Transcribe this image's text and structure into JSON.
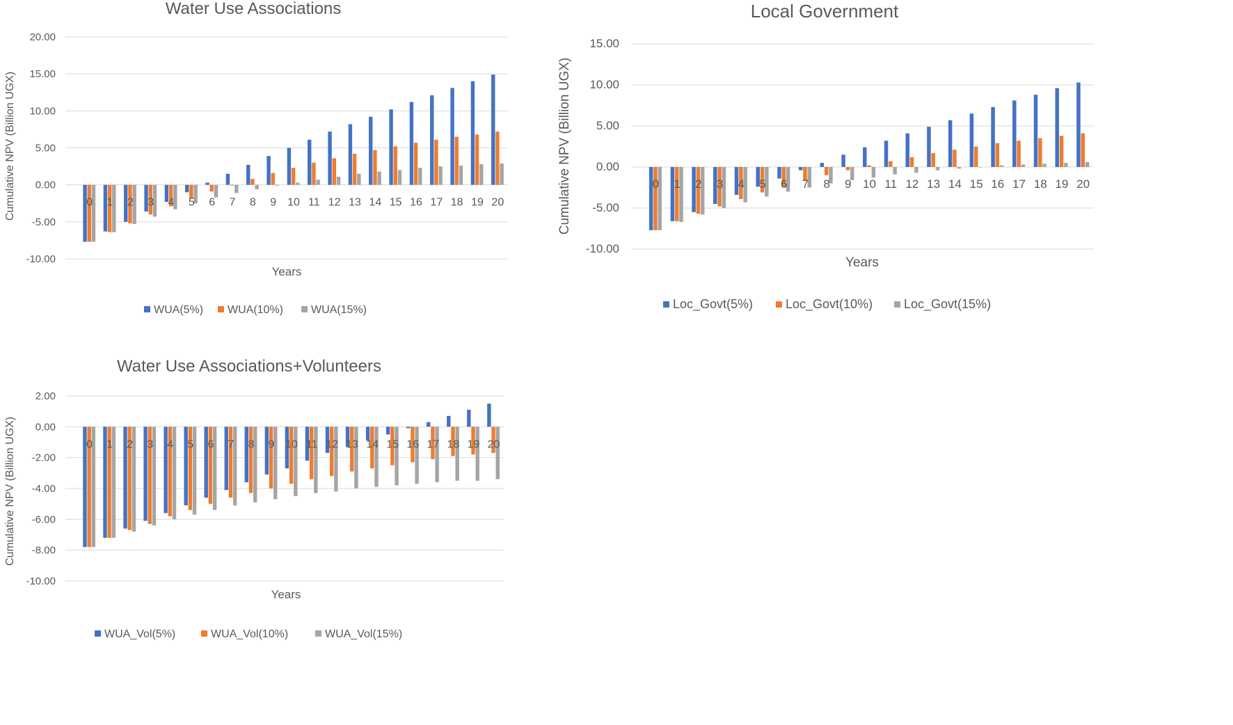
{
  "chart_data": [
    {
      "id": "wua",
      "type": "bar",
      "title": "Water Use Associations",
      "xlabel": "Years",
      "ylabel": "Cumulative NPV (Billion UGX)",
      "ylim": [
        -10,
        20
      ],
      "yticks": [
        -10,
        -5,
        0,
        5,
        10,
        15,
        20
      ],
      "ytick_labels": [
        "-10.00",
        "-5.00",
        "0.00",
        "5.00",
        "10.00",
        "15.00",
        "20.00"
      ],
      "grid": true,
      "legend": "bottom",
      "categories": [
        "0",
        "1",
        "2",
        "3",
        "4",
        "5",
        "6",
        "7",
        "8",
        "9",
        "10",
        "11",
        "12",
        "13",
        "14",
        "15",
        "16",
        "17",
        "18",
        "19",
        "20"
      ],
      "series": [
        {
          "name": "WUA(5%)",
          "color": "#4472C4",
          "values": [
            -7.7,
            -6.3,
            -5.0,
            -3.6,
            -2.3,
            -1.0,
            0.3,
            1.5,
            2.7,
            3.9,
            5.0,
            6.1,
            7.2,
            8.2,
            9.2,
            10.2,
            11.2,
            12.1,
            13.1,
            14.0,
            14.9
          ]
        },
        {
          "name": "WUA(10%)",
          "color": "#ED7D31",
          "values": [
            -7.7,
            -6.4,
            -5.2,
            -4.0,
            -2.9,
            -1.8,
            -0.9,
            -0.1,
            0.8,
            1.6,
            2.3,
            3.0,
            3.6,
            4.2,
            4.7,
            5.2,
            5.7,
            6.1,
            6.5,
            6.8,
            7.2
          ]
        },
        {
          "name": "WUA(15%)",
          "color": "#A5A5A5",
          "values": [
            -7.7,
            -6.4,
            -5.3,
            -4.3,
            -3.3,
            -2.5,
            -1.7,
            -1.1,
            -0.6,
            -0.1,
            0.3,
            0.7,
            1.1,
            1.5,
            1.8,
            2.0,
            2.3,
            2.5,
            2.6,
            2.8,
            2.9
          ]
        }
      ]
    },
    {
      "id": "gov",
      "type": "bar",
      "title": "Local Government",
      "xlabel": "Years",
      "ylabel": "Cumulative NPV (Billion UGX)",
      "ylim": [
        -10,
        15
      ],
      "yticks": [
        -10,
        -5,
        0,
        5,
        10,
        15
      ],
      "ytick_labels": [
        "-10.00",
        "-5.00",
        "0.00",
        "5.00",
        "10.00",
        "15.00"
      ],
      "grid": true,
      "legend": "bottom",
      "categories": [
        "0",
        "1",
        "2",
        "3",
        "4",
        "5",
        "6",
        "7",
        "8",
        "9",
        "10",
        "11",
        "12",
        "13",
        "14",
        "15",
        "16",
        "17",
        "18",
        "19",
        "20"
      ],
      "series": [
        {
          "name": "Loc_Govt(5%)",
          "color": "#4472C4",
          "values": [
            -7.7,
            -6.6,
            -5.5,
            -4.5,
            -3.4,
            -2.4,
            -1.4,
            -0.4,
            0.5,
            1.5,
            2.4,
            3.2,
            4.1,
            4.9,
            5.7,
            6.5,
            7.3,
            8.1,
            8.8,
            9.6,
            10.3
          ]
        },
        {
          "name": "Loc_Govt(10%)",
          "color": "#ED7D31",
          "values": [
            -7.7,
            -6.6,
            -5.7,
            -4.8,
            -3.9,
            -3.1,
            -2.4,
            -1.7,
            -1.0,
            -0.4,
            0.2,
            0.7,
            1.2,
            1.7,
            2.1,
            2.5,
            2.9,
            3.2,
            3.5,
            3.8,
            4.1
          ]
        },
        {
          "name": "Loc_Govt(15%)",
          "color": "#A5A5A5",
          "values": [
            -7.7,
            -6.7,
            -5.8,
            -5.0,
            -4.3,
            -3.6,
            -3.0,
            -2.5,
            -2.0,
            -1.6,
            -1.3,
            -0.9,
            -0.7,
            -0.4,
            -0.2,
            0.0,
            0.2,
            0.3,
            0.4,
            0.5,
            0.6
          ]
        }
      ]
    },
    {
      "id": "vol",
      "type": "bar",
      "title": "Water Use Associations+Volunteers",
      "xlabel": "Years",
      "ylabel": "Cumulative NPV (Billion UGX)",
      "ylim": [
        -10,
        2
      ],
      "yticks": [
        -10,
        -8,
        -6,
        -4,
        -2,
        0,
        2
      ],
      "ytick_labels": [
        "-10.00",
        "-8.00",
        "-6.00",
        "-4.00",
        "-2.00",
        "0.00",
        "2.00"
      ],
      "grid": true,
      "legend": "bottom",
      "categories": [
        "0",
        "1",
        "2",
        "3",
        "4",
        "5",
        "6",
        "7",
        "8",
        "9",
        "10",
        "11",
        "12",
        "13",
        "14",
        "15",
        "16",
        "17",
        "18",
        "19",
        "20"
      ],
      "series": [
        {
          "name": "WUA_Vol(5%)",
          "color": "#4472C4",
          "values": [
            -7.8,
            -7.2,
            -6.6,
            -6.1,
            -5.6,
            -5.1,
            -4.6,
            -4.1,
            -3.6,
            -3.1,
            -2.7,
            -2.2,
            -1.7,
            -1.3,
            -0.9,
            -0.5,
            -0.1,
            0.3,
            0.7,
            1.1,
            1.5
          ]
        },
        {
          "name": "WUA_Vol(10%)",
          "color": "#ED7D31",
          "values": [
            -7.8,
            -7.2,
            -6.7,
            -6.3,
            -5.8,
            -5.4,
            -5.0,
            -4.6,
            -4.3,
            -4.0,
            -3.7,
            -3.4,
            -3.2,
            -2.9,
            -2.7,
            -2.5,
            -2.3,
            -2.1,
            -1.9,
            -1.8,
            -1.7
          ]
        },
        {
          "name": "WUA_Vol(15%)",
          "color": "#A5A5A5",
          "values": [
            -7.8,
            -7.2,
            -6.8,
            -6.4,
            -6.0,
            -5.7,
            -5.4,
            -5.1,
            -4.9,
            -4.7,
            -4.5,
            -4.3,
            -4.2,
            -4.0,
            -3.9,
            -3.8,
            -3.7,
            -3.6,
            -3.5,
            -3.5,
            -3.4
          ]
        }
      ]
    }
  ]
}
